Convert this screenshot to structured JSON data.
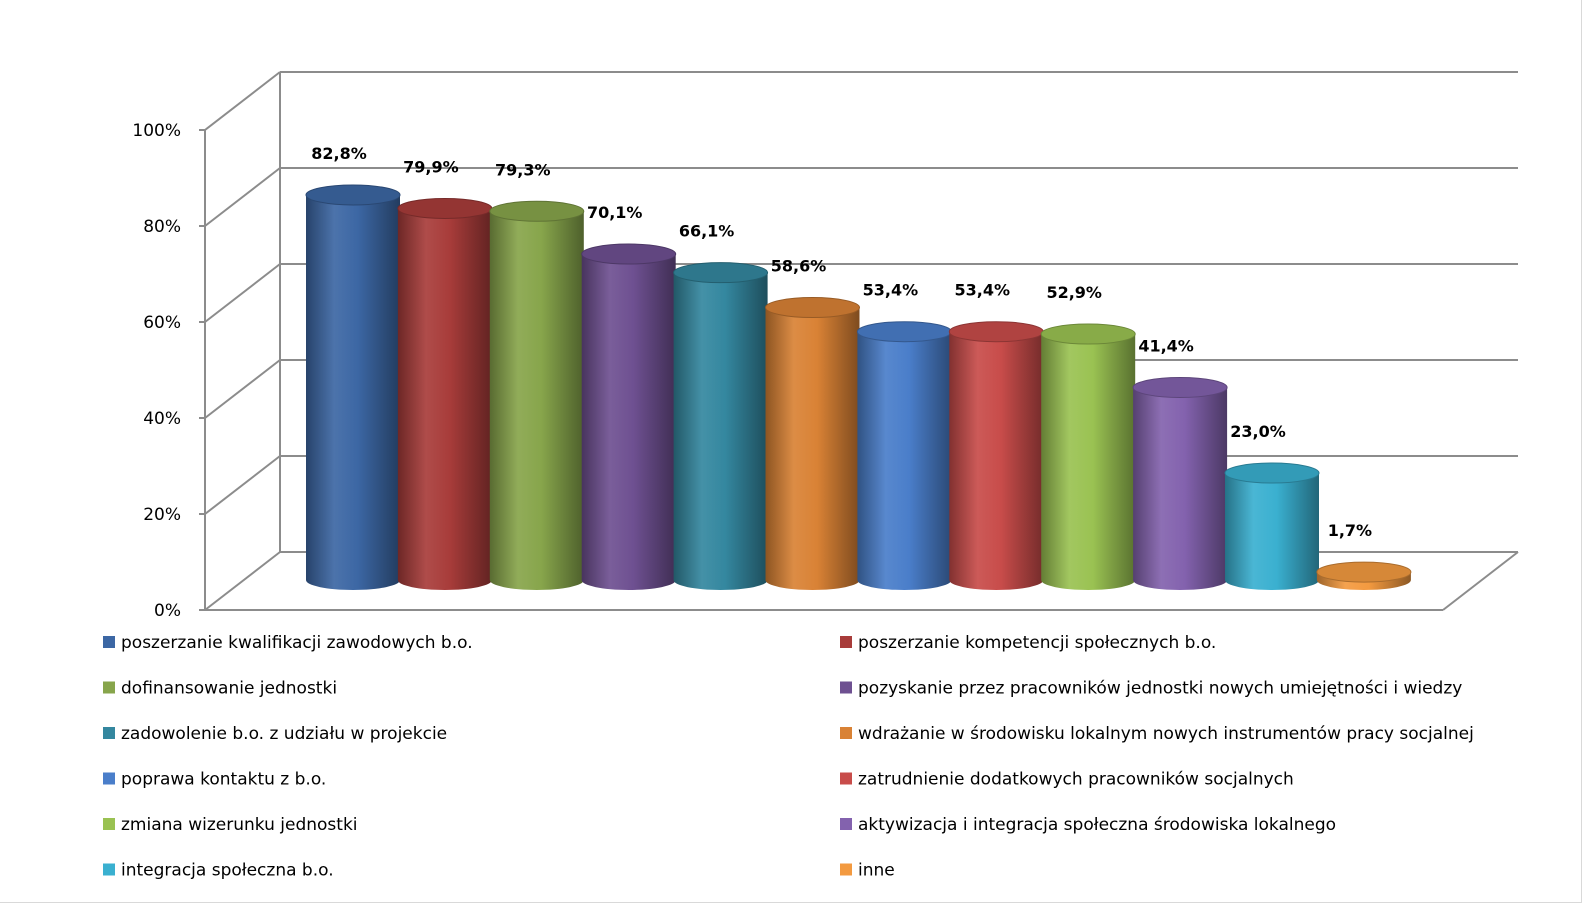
{
  "chart_data": {
    "type": "bar",
    "style": "3d-cylinder",
    "title": "",
    "xlabel": "",
    "ylabel": "",
    "ylim": [
      0,
      100
    ],
    "yticks": [
      0,
      20,
      40,
      60,
      80,
      100
    ],
    "ytick_labels": [
      "0%",
      "20%",
      "40%",
      "60%",
      "80%",
      "100%"
    ],
    "grid": true,
    "legend_position": "bottom",
    "legend_columns": 2,
    "categories": [
      "poszerzanie kwalifikacji  zawodowych  b.o.",
      "poszerzanie kompetencji  społecznych b.o.",
      "dofinansowanie jednostki",
      "pozyskanie przez pracowników jednostki nowych umiejętności i wiedzy",
      "zadowolenie b.o. z udziału  w projekcie",
      "wdrażanie w środowisku lokalnym nowych instrumentów pracy socjalnej",
      "poprawa kontaktu  z b.o.",
      "zatrudnienie dodatkowych pracowników socjalnych",
      "zmiana  wizerunku jednostki",
      "aktywizacja  i integracja społeczna środowiska lokalnego",
      "integracja społeczna b.o.",
      "inne"
    ],
    "values": [
      82.8,
      79.9,
      79.3,
      70.1,
      66.1,
      58.6,
      53.4,
      53.4,
      52.9,
      41.4,
      23.0,
      1.7
    ],
    "value_labels": [
      "82,8%",
      "79,9%",
      "79,3%",
      "70,1%",
      "66,1%",
      "58,6%",
      "53,4%",
      "53,4%",
      "52,9%",
      "41,4%",
      "23,0%",
      "1,7%"
    ],
    "colors": [
      "#3C67A4",
      "#A83C3A",
      "#87A54B",
      "#6E5091",
      "#34879F",
      "#D98235",
      "#4A7ECA",
      "#C84C4A",
      "#9AC252",
      "#8362AE",
      "#3AB0D0",
      "#F39A40"
    ]
  }
}
